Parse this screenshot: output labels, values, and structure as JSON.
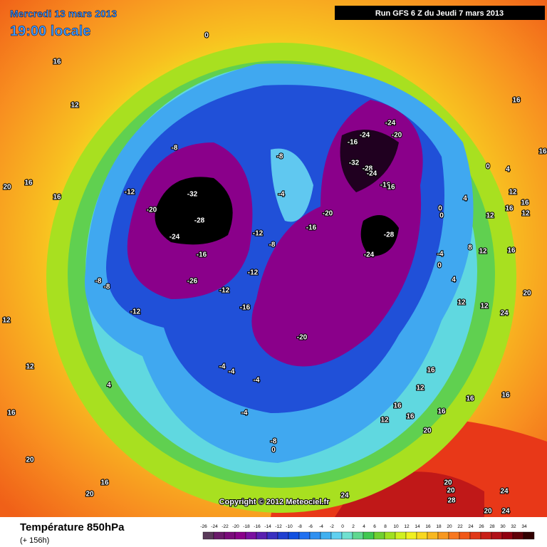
{
  "header": {
    "date": "Mercredi 13 mars 2013",
    "time": "19:00 locale",
    "run": "Run GFS 6 Z du Jeudi 7 mars 2013"
  },
  "copyright": "Copyright © 2012 Meteociel.fr",
  "footer": {
    "title": "Température 850hPa",
    "lead": "(+ 156h)"
  },
  "scale": {
    "ticks": [
      -26,
      -24,
      -22,
      -20,
      -18,
      -16,
      -14,
      -12,
      -10,
      -8,
      -6,
      -4,
      -2,
      0,
      2,
      4,
      6,
      8,
      10,
      12,
      14,
      16,
      18,
      20,
      22,
      24,
      26,
      28,
      30,
      32,
      34
    ],
    "colors": [
      "#5a3a5a",
      "#6a1a6a",
      "#7a0a7a",
      "#8a008a",
      "#7a10a0",
      "#5a20b0",
      "#3a30c0",
      "#2040d0",
      "#1050e0",
      "#2070f0",
      "#3090f0",
      "#40b0f0",
      "#60d0f0",
      "#70e0d0",
      "#60d890",
      "#40c850",
      "#70d030",
      "#a0e020",
      "#d0f020",
      "#f0f020",
      "#f8d820",
      "#f8b820",
      "#f89820",
      "#f87820",
      "#f05818",
      "#e03818",
      "#c82018",
      "#b01018",
      "#900010",
      "#600008",
      "#300000"
    ]
  },
  "map": {
    "contour_labels": [
      0,
      16,
      12,
      20,
      16,
      16,
      -8,
      -12,
      -32,
      -20,
      -28,
      -24,
      -16,
      -26,
      -8,
      -8,
      -12,
      -12,
      -12,
      -12,
      -8,
      -16,
      -8,
      -4,
      -16,
      -20,
      -20,
      -4,
      -4,
      -4,
      -4,
      -8,
      0,
      -24,
      -20,
      -24,
      -16,
      -32,
      -28,
      -24,
      -16,
      16,
      -28,
      -24,
      0,
      4,
      4,
      0,
      0,
      -4,
      0,
      4,
      8,
      12,
      12,
      12,
      16,
      12,
      16,
      16,
      16,
      16,
      20,
      12,
      12,
      24,
      12,
      12,
      4,
      16,
      20,
      20,
      16,
      24,
      20,
      20,
      24,
      28,
      20,
      24,
      16,
      12,
      16,
      20,
      16,
      12,
      16,
      16,
      16
    ]
  }
}
